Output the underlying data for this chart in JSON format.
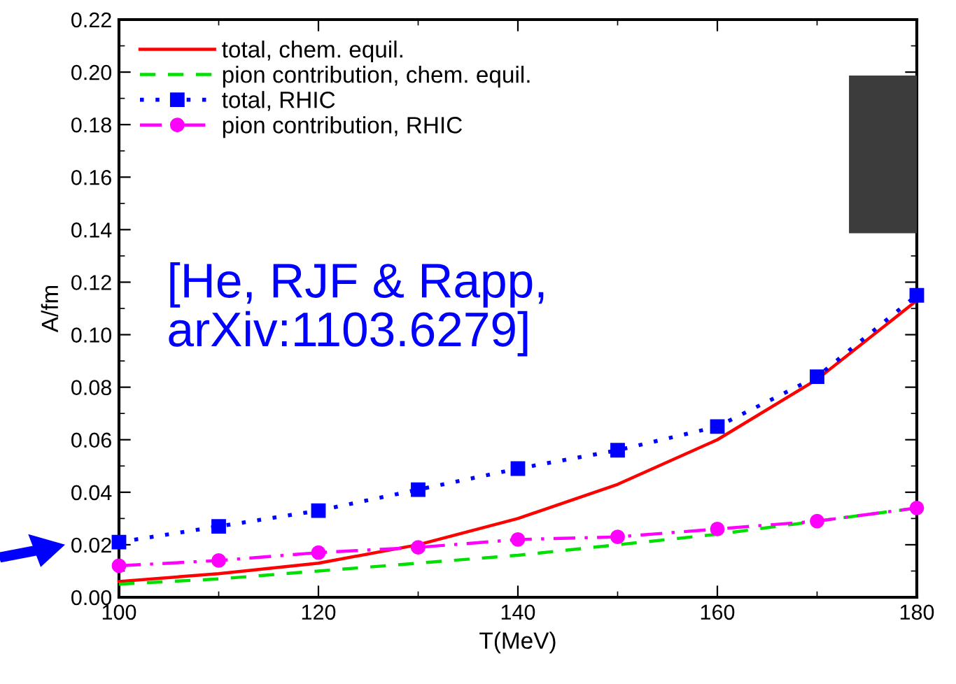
{
  "chart_data": {
    "type": "line",
    "xlabel": "T(MeV)",
    "ylabel": "A/fm",
    "x": [
      100,
      110,
      120,
      130,
      140,
      150,
      160,
      170,
      180
    ],
    "series": [
      {
        "name": "total, chem. equil.",
        "color": "#ff0000",
        "line_style": "solid",
        "marker": "none",
        "values": [
          0.006,
          0.009,
          0.013,
          0.02,
          0.03,
          0.043,
          0.06,
          0.083,
          0.113
        ]
      },
      {
        "name": "pion contribution, chem. equil.",
        "color": "#00e000",
        "line_style": "dashed",
        "marker": "none",
        "values": [
          0.005,
          0.007,
          0.01,
          0.013,
          0.016,
          0.02,
          0.024,
          0.029,
          0.034
        ]
      },
      {
        "name": "total, RHIC",
        "color": "#0000ff",
        "line_style": "dotted",
        "marker": "square",
        "values": [
          0.021,
          0.027,
          0.033,
          0.041,
          0.049,
          0.056,
          0.065,
          0.084,
          0.115
        ]
      },
      {
        "name": "pion contribution, RHIC",
        "color": "#ff00ff",
        "line_style": "dashdot",
        "marker": "circle",
        "values": [
          0.012,
          0.014,
          0.017,
          0.019,
          0.022,
          0.023,
          0.026,
          0.029,
          0.034
        ]
      }
    ],
    "xlim": [
      100,
      180
    ],
    "xticks": [
      100,
      120,
      140,
      160,
      180
    ],
    "ylim": [
      0,
      0.22
    ],
    "yticks": [
      {
        "value": 0,
        "label": "0.00"
      },
      {
        "value": 0.02,
        "label": "0.02"
      },
      {
        "value": 0.04,
        "label": "0.04"
      },
      {
        "value": 0.06,
        "label": "0.06"
      },
      {
        "value": 0.08,
        "label": "0.08"
      },
      {
        "value": 0.1,
        "label": "0.10"
      },
      {
        "value": 0.12,
        "label": "0.12"
      },
      {
        "value": 0.14,
        "label": "0.14"
      },
      {
        "value": 0.16,
        "label": "0.16"
      },
      {
        "value": 0.18,
        "label": "0.18"
      },
      {
        "value": 0.2,
        "label": "0.20"
      },
      {
        "value": 0.22,
        "label": "0.22"
      }
    ],
    "annotations": [
      "[He, RJF & Rapp,\narXiv:1103.6279]"
    ],
    "legend": "top left",
    "grid": false
  }
}
